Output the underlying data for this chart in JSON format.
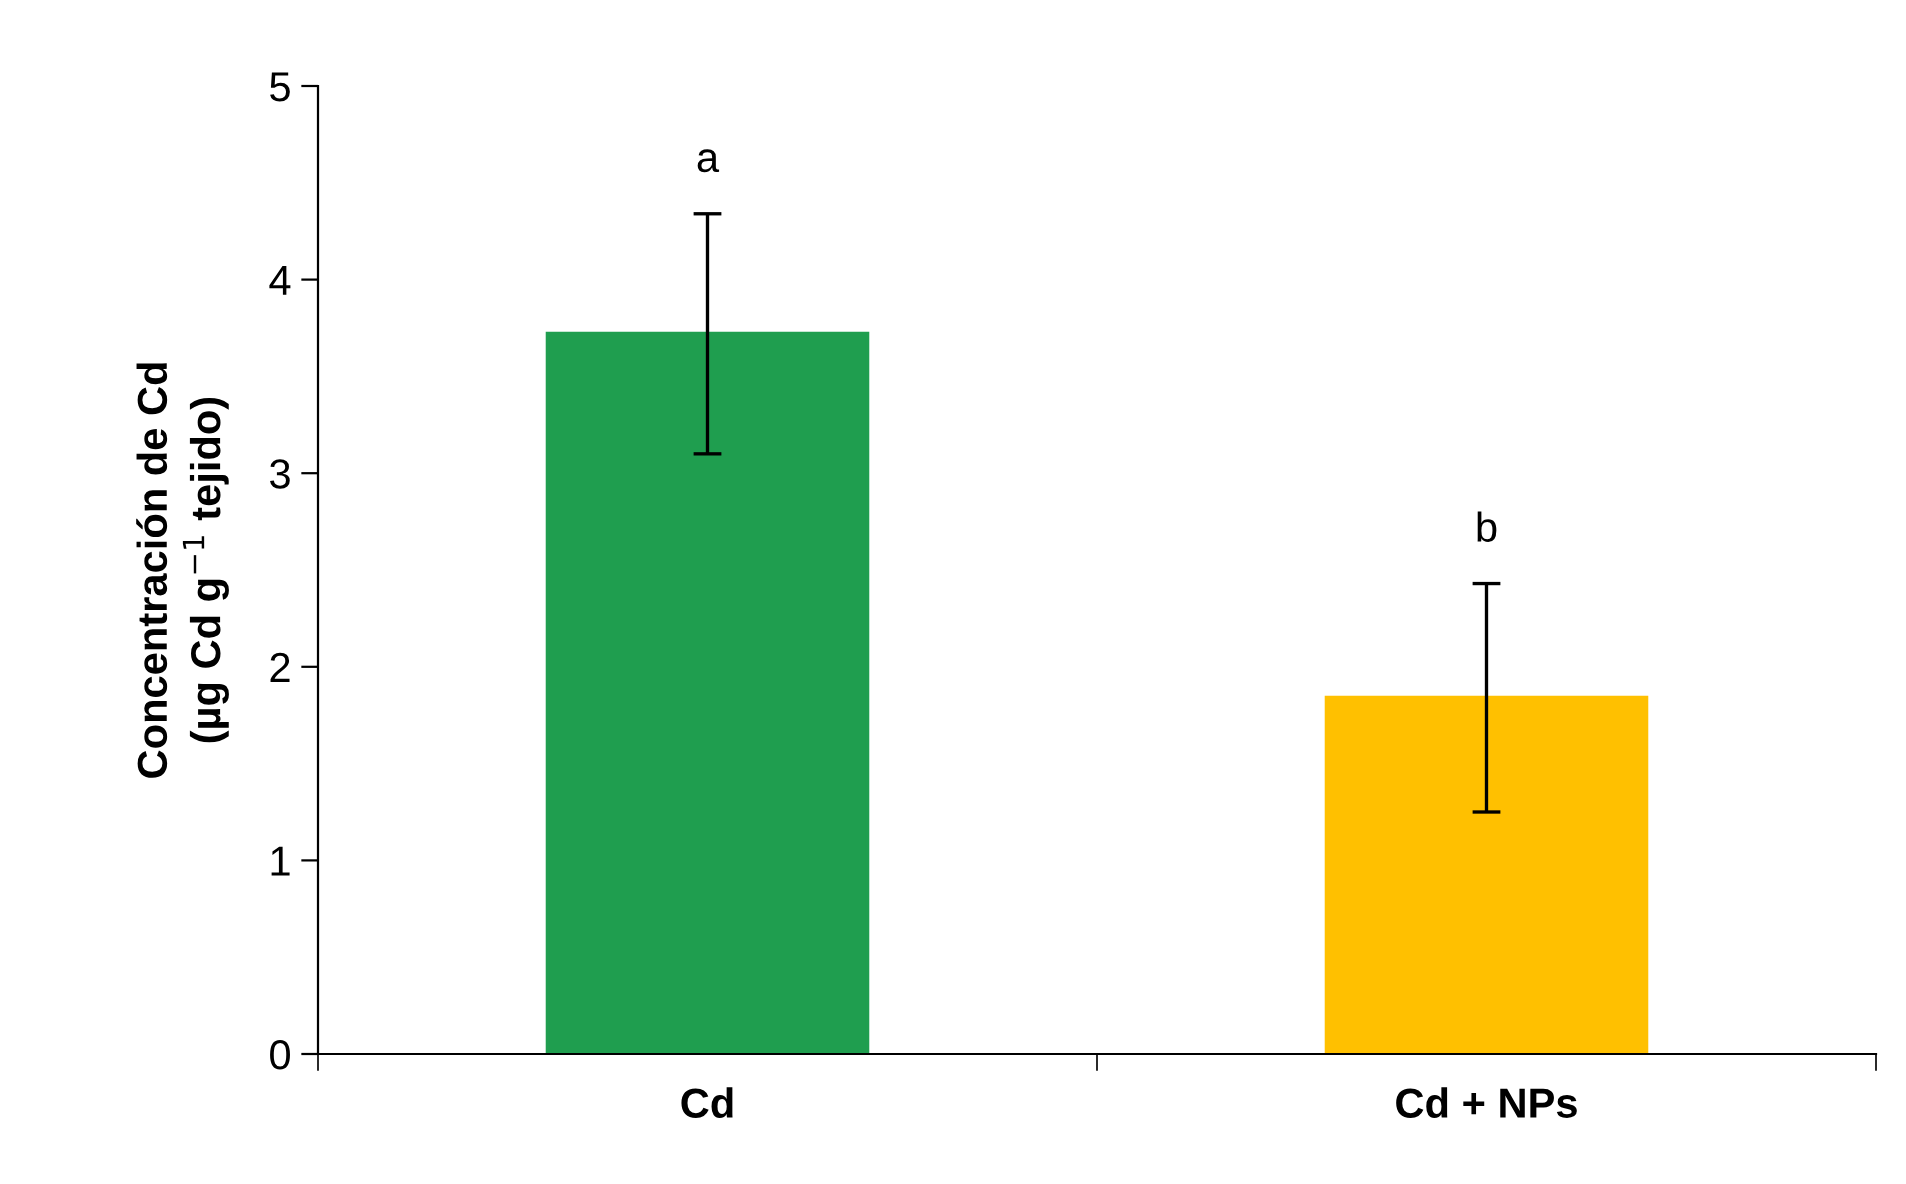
{
  "chart_data": {
    "type": "bar",
    "ylabel": "Concentración de Cd\n(µg Cd g$^{−1}$ tejido)",
    "categories": [
      "Cd",
      "Cd + NPs"
    ],
    "values": [
      3.72,
      1.84
    ],
    "colors": [
      "#1f9e4f",
      "#ffc000"
    ],
    "errors": [
      0.62,
      0.59
    ],
    "ylim": [
      0,
      5
    ],
    "yticks": [
      0,
      1,
      2,
      3,
      4,
      5
    ],
    "grid": false,
    "legend": false,
    "annotations": [
      {
        "text": "a",
        "x": "Cd",
        "y": 4.34
      },
      {
        "text": "b",
        "x": "Cd + NPs",
        "y": 2.43
      }
    ]
  }
}
